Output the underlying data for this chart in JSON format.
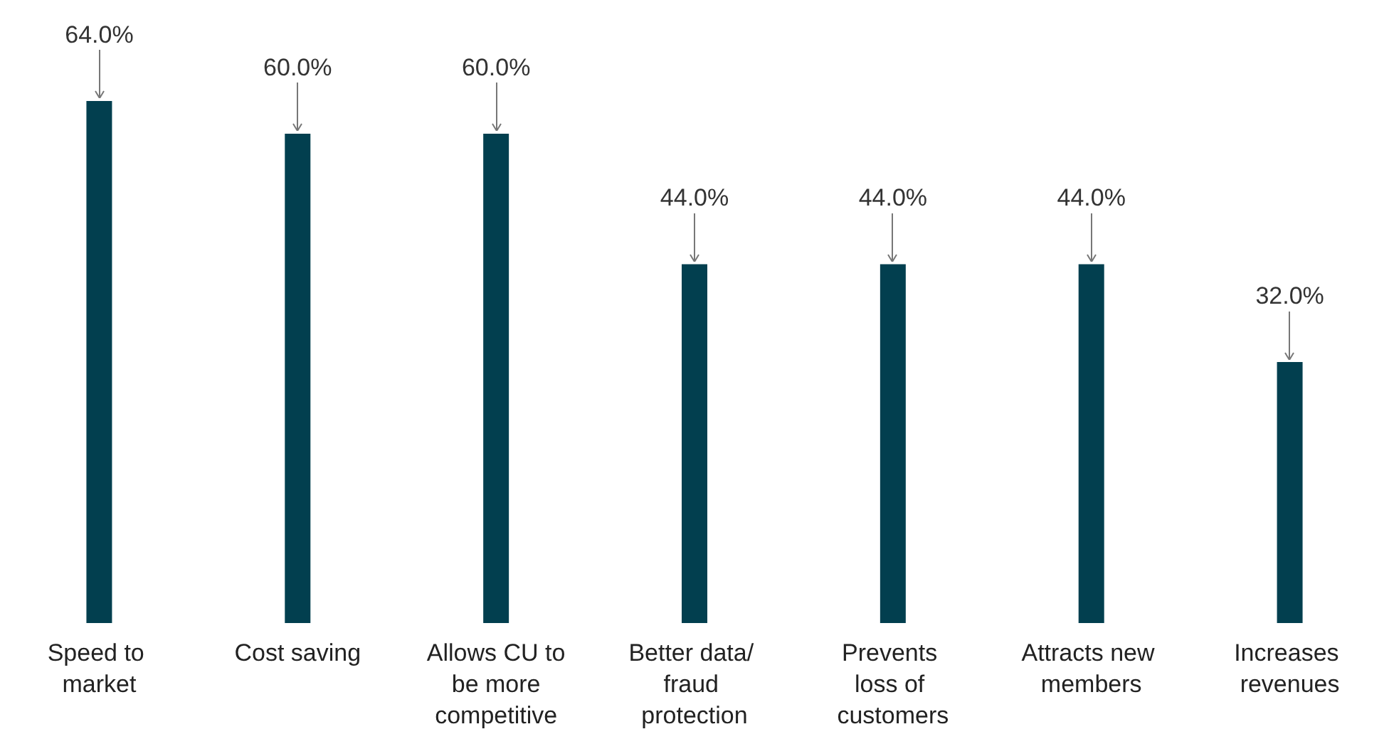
{
  "chart_data": {
    "type": "bar",
    "categories": [
      "Speed to market",
      "Cost saving",
      "Allows CU to be more competitive",
      "Better data/ fraud protection",
      "Prevents loss of customers",
      "Attracts new members",
      "Increases revenues"
    ],
    "values": [
      64,
      60,
      60,
      44,
      44,
      44,
      32
    ],
    "value_labels": [
      "64.0%",
      "60.0%",
      "60.0%",
      "44.0%",
      "44.0%",
      "44.0%",
      "32.0%"
    ],
    "color": "#023f4f"
  }
}
